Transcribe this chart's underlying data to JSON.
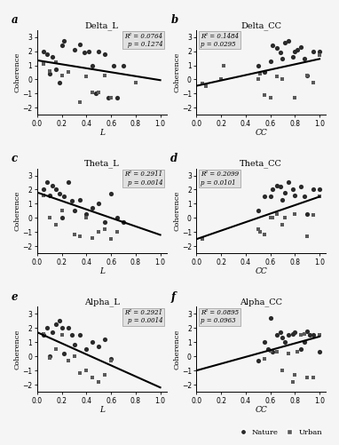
{
  "panels": [
    {
      "label": "a",
      "title": "Delta_L",
      "xlabel": "L",
      "r2": "R² = 0.0764",
      "p": "p = 0.1274",
      "ann_pos": "right",
      "nature_x": [
        0.05,
        0.08,
        0.1,
        0.12,
        0.15,
        0.18,
        0.2,
        0.22,
        0.3,
        0.35,
        0.38,
        0.42,
        0.45,
        0.48,
        0.5,
        0.55,
        0.58,
        0.62,
        0.65,
        0.7
      ],
      "nature_y": [
        2.0,
        1.8,
        0.4,
        1.6,
        0.7,
        -0.2,
        2.4,
        2.7,
        2.1,
        2.5,
        1.9,
        2.0,
        1.0,
        -1.0,
        2.0,
        1.8,
        -1.3,
        1.0,
        -1.3,
        1.0
      ],
      "urban_x": [
        0.05,
        0.1,
        0.15,
        0.2,
        0.25,
        0.35,
        0.4,
        0.45,
        0.5,
        0.55,
        0.6,
        0.8
      ],
      "urban_y": [
        1.1,
        0.6,
        1.2,
        0.3,
        0.5,
        -1.6,
        0.2,
        -0.9,
        -0.9,
        0.3,
        -1.3,
        -0.2
      ],
      "line_x": [
        0.0,
        1.0
      ],
      "line_y": [
        1.35,
        -0.05
      ]
    },
    {
      "label": "b",
      "title": "Delta_CC",
      "xlabel": "CC",
      "r2": "R² = 0.1484",
      "p": "p = 0.0295",
      "ann_pos": "left",
      "nature_x": [
        0.5,
        0.55,
        0.6,
        0.62,
        0.65,
        0.68,
        0.7,
        0.72,
        0.75,
        0.78,
        0.8,
        0.82,
        0.85,
        0.88,
        0.9,
        0.95,
        1.0
      ],
      "nature_y": [
        1.0,
        0.5,
        1.3,
        2.4,
        2.2,
        1.9,
        1.5,
        2.6,
        2.7,
        1.6,
        2.0,
        2.1,
        2.3,
        1.5,
        0.3,
        2.0,
        2.0
      ],
      "urban_x": [
        0.05,
        0.08,
        0.2,
        0.22,
        0.5,
        0.52,
        0.55,
        0.6,
        0.65,
        0.7,
        0.8,
        0.9,
        0.95,
        1.0
      ],
      "urban_y": [
        -0.3,
        -0.5,
        0.0,
        1.0,
        0.0,
        0.4,
        -1.1,
        -1.3,
        0.2,
        0.0,
        -1.3,
        0.3,
        -0.2,
        1.7
      ],
      "line_x": [
        0.0,
        1.0
      ],
      "line_y": [
        -0.45,
        1.45
      ]
    },
    {
      "label": "c",
      "title": "Theta_L",
      "xlabel": "L",
      "r2": "R² = 0.2911",
      "p": "p = 0.0014",
      "ann_pos": "right",
      "nature_x": [
        0.05,
        0.08,
        0.1,
        0.12,
        0.15,
        0.18,
        0.2,
        0.22,
        0.25,
        0.28,
        0.3,
        0.35,
        0.4,
        0.45,
        0.5,
        0.55,
        0.6,
        0.65,
        0.7
      ],
      "nature_y": [
        2.0,
        2.5,
        1.6,
        2.3,
        2.0,
        1.7,
        0.0,
        1.5,
        2.5,
        1.2,
        0.5,
        1.3,
        0.3,
        0.7,
        1.0,
        -0.3,
        1.7,
        0.0,
        -0.3
      ],
      "urban_x": [
        0.05,
        0.1,
        0.15,
        0.2,
        0.3,
        0.35,
        0.4,
        0.45,
        0.5,
        0.55,
        0.6,
        0.65
      ],
      "urban_y": [
        1.6,
        0.0,
        -0.5,
        0.5,
        -1.2,
        -1.3,
        0.0,
        -1.4,
        -1.0,
        -0.8,
        -1.5,
        -1.0
      ],
      "line_x": [
        0.0,
        1.0
      ],
      "line_y": [
        1.8,
        -1.2
      ]
    },
    {
      "label": "d",
      "title": "Theta_CC",
      "xlabel": "CC",
      "r2": "R² = 0.2099",
      "p": "p = 0.0101",
      "ann_pos": "left",
      "nature_x": [
        0.5,
        0.55,
        0.6,
        0.62,
        0.65,
        0.68,
        0.7,
        0.72,
        0.75,
        0.78,
        0.8,
        0.85,
        0.88,
        0.9,
        0.95,
        1.0
      ],
      "nature_y": [
        0.5,
        1.5,
        1.5,
        2.0,
        2.3,
        2.2,
        1.3,
        1.8,
        2.5,
        2.0,
        1.6,
        2.2,
        1.5,
        0.3,
        2.0,
        2.0
      ],
      "urban_x": [
        0.05,
        0.5,
        0.52,
        0.55,
        0.6,
        0.62,
        0.65,
        0.7,
        0.72,
        0.8,
        0.9,
        0.95,
        1.0
      ],
      "urban_y": [
        -1.5,
        -0.8,
        -1.0,
        -1.2,
        0.0,
        0.0,
        0.3,
        -0.5,
        0.0,
        0.3,
        -1.3,
        0.2,
        1.5
      ],
      "line_x": [
        0.0,
        1.0
      ],
      "line_y": [
        -1.5,
        1.5
      ]
    },
    {
      "label": "e",
      "title": "Alpha_L",
      "xlabel": "L",
      "r2": "R² = 0.2921",
      "p": "p = 0.0014",
      "ann_pos": "right",
      "nature_x": [
        0.05,
        0.08,
        0.1,
        0.12,
        0.15,
        0.18,
        0.2,
        0.22,
        0.25,
        0.28,
        0.3,
        0.35,
        0.4,
        0.45,
        0.5,
        0.55,
        0.6
      ],
      "nature_y": [
        1.5,
        2.0,
        0.0,
        1.7,
        2.3,
        2.5,
        2.0,
        0.2,
        2.0,
        1.5,
        0.8,
        1.5,
        0.5,
        1.0,
        0.7,
        1.2,
        -0.2
      ],
      "urban_x": [
        0.05,
        0.1,
        0.15,
        0.2,
        0.25,
        0.3,
        0.35,
        0.4,
        0.45,
        0.5,
        0.55,
        0.6
      ],
      "urban_y": [
        1.6,
        -0.1,
        0.5,
        1.5,
        -0.3,
        0.0,
        -1.2,
        -1.0,
        -1.5,
        -1.8,
        -1.3,
        -0.3
      ],
      "line_x": [
        0.0,
        1.0
      ],
      "line_y": [
        1.7,
        -2.2
      ]
    },
    {
      "label": "f",
      "title": "Alpha_CC",
      "xlabel": "CC",
      "r2": "R² = 0.0895",
      "p": "p = 0.0963",
      "ann_pos": "left",
      "nature_x": [
        0.5,
        0.55,
        0.58,
        0.6,
        0.62,
        0.65,
        0.68,
        0.7,
        0.72,
        0.75,
        0.78,
        0.8,
        0.85,
        0.88,
        0.9,
        0.92,
        0.95,
        1.0
      ],
      "nature_y": [
        -0.3,
        1.0,
        0.5,
        2.7,
        0.3,
        1.5,
        1.7,
        1.3,
        1.0,
        1.5,
        1.6,
        1.7,
        0.5,
        1.0,
        1.8,
        1.5,
        1.5,
        0.3
      ],
      "urban_x": [
        0.55,
        0.6,
        0.65,
        0.7,
        0.75,
        0.78,
        0.8,
        0.82,
        0.85,
        0.88,
        0.9,
        0.95,
        1.0
      ],
      "urban_y": [
        -0.2,
        0.4,
        0.3,
        -1.0,
        0.2,
        -1.8,
        -1.3,
        0.3,
        1.5,
        1.6,
        -1.5,
        -1.5,
        1.5
      ],
      "line_x": [
        0.0,
        1.0
      ],
      "line_y": [
        -1.0,
        1.4
      ]
    }
  ],
  "ylim": [
    -2.5,
    3.5
  ],
  "yticks": [
    -2,
    -1,
    0,
    1,
    2,
    3
  ],
  "xlim": [
    0.0,
    1.05
  ],
  "xticks": [
    0.0,
    0.2,
    0.4,
    0.6,
    0.8,
    1.0
  ],
  "nature_color": "#2a2a2a",
  "urban_color": "#5a5a5a",
  "line_color": "#000000",
  "ann_box_fc": "#e0e0e0",
  "ann_box_ec": "#999999",
  "bg_color": "#f5f5f5"
}
